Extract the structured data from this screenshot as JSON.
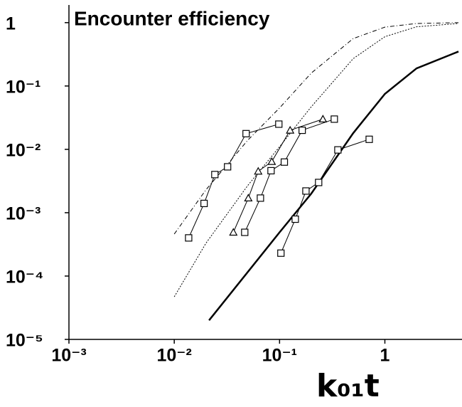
{
  "chart_data": {
    "type": "line",
    "title": "Encounter efficiency",
    "x_label": "k₀₁t",
    "log_x": true,
    "log_y": true,
    "grid": false,
    "xlim": [
      0.001,
      5.4
    ],
    "ylim": [
      1e-05,
      1.9
    ],
    "xticks": [
      {
        "value": 0.001,
        "label": "10⁻³"
      },
      {
        "value": 0.01,
        "label": "10⁻²"
      },
      {
        "value": 0.1,
        "label": "10⁻¹"
      },
      1
    ],
    "yticks": [
      {
        "value": 1e-05,
        "label": "10⁻⁵"
      },
      {
        "value": 0.0001,
        "label": "10⁻⁴"
      },
      {
        "value": 0.001,
        "label": "10⁻³"
      },
      {
        "value": 0.01,
        "label": "10⁻²"
      },
      {
        "value": 0.1,
        "label": "10⁻¹"
      },
      1
    ],
    "series": [
      {
        "color": "#000000",
        "dash": "dashdot",
        "marker": "none",
        "x": [
          0.01,
          0.02,
          0.05,
          0.1,
          0.2,
          0.5,
          1,
          2,
          5
        ],
        "values": [
          0.00046,
          0.0023,
          0.014,
          0.045,
          0.16,
          0.56,
          0.85,
          0.97,
          1
        ]
      },
      {
        "color": "#000000",
        "dash": "dot",
        "marker": "none",
        "x": [
          0.01,
          0.02,
          0.05,
          0.1,
          0.2,
          0.5,
          1,
          2,
          5
        ],
        "values": [
          4.7e-05,
          0.00033,
          0.0027,
          0.011,
          0.047,
          0.27,
          0.6,
          0.86,
          0.97
        ]
      },
      {
        "color": "#000000",
        "dash": "solid",
        "width": 2.5,
        "marker": "none",
        "x": [
          0.0214,
          0.1,
          0.2,
          0.5,
          1,
          2,
          5
        ],
        "values": [
          2e-05,
          0.00049,
          0.002,
          0.018,
          0.075,
          0.19,
          0.35
        ]
      },
      {
        "color": "#000000",
        "dash": "solid",
        "marker": "square",
        "x": [
          0.0137,
          0.0192,
          0.0243,
          0.0321,
          0.0481,
          0.0984
        ],
        "values": [
          0.0004,
          0.0014,
          0.004,
          0.0053,
          0.0177,
          0.025
        ]
      },
      {
        "color": "#000000",
        "dash": "solid",
        "marker": "triangle",
        "x": [
          0.0364,
          0.0505,
          0.0627,
          0.0843,
          0.126,
          0.258
        ],
        "values": [
          0.00049,
          0.0017,
          0.0045,
          0.0064,
          0.02,
          0.03
        ]
      },
      {
        "color": "#000000",
        "dash": "solid",
        "marker": "square",
        "x": [
          0.0467,
          0.0658,
          0.083,
          0.111,
          0.164,
          0.331
        ],
        "values": [
          0.00049,
          0.0017,
          0.0046,
          0.0063,
          0.02,
          0.03
        ]
      },
      {
        "color": "#000000",
        "dash": "solid",
        "marker": "square",
        "x": [
          0.103,
          0.141,
          0.178,
          0.235,
          0.358,
          0.71
        ],
        "values": [
          0.00023,
          0.00079,
          0.0022,
          0.003,
          0.0098,
          0.0144
        ]
      }
    ]
  }
}
